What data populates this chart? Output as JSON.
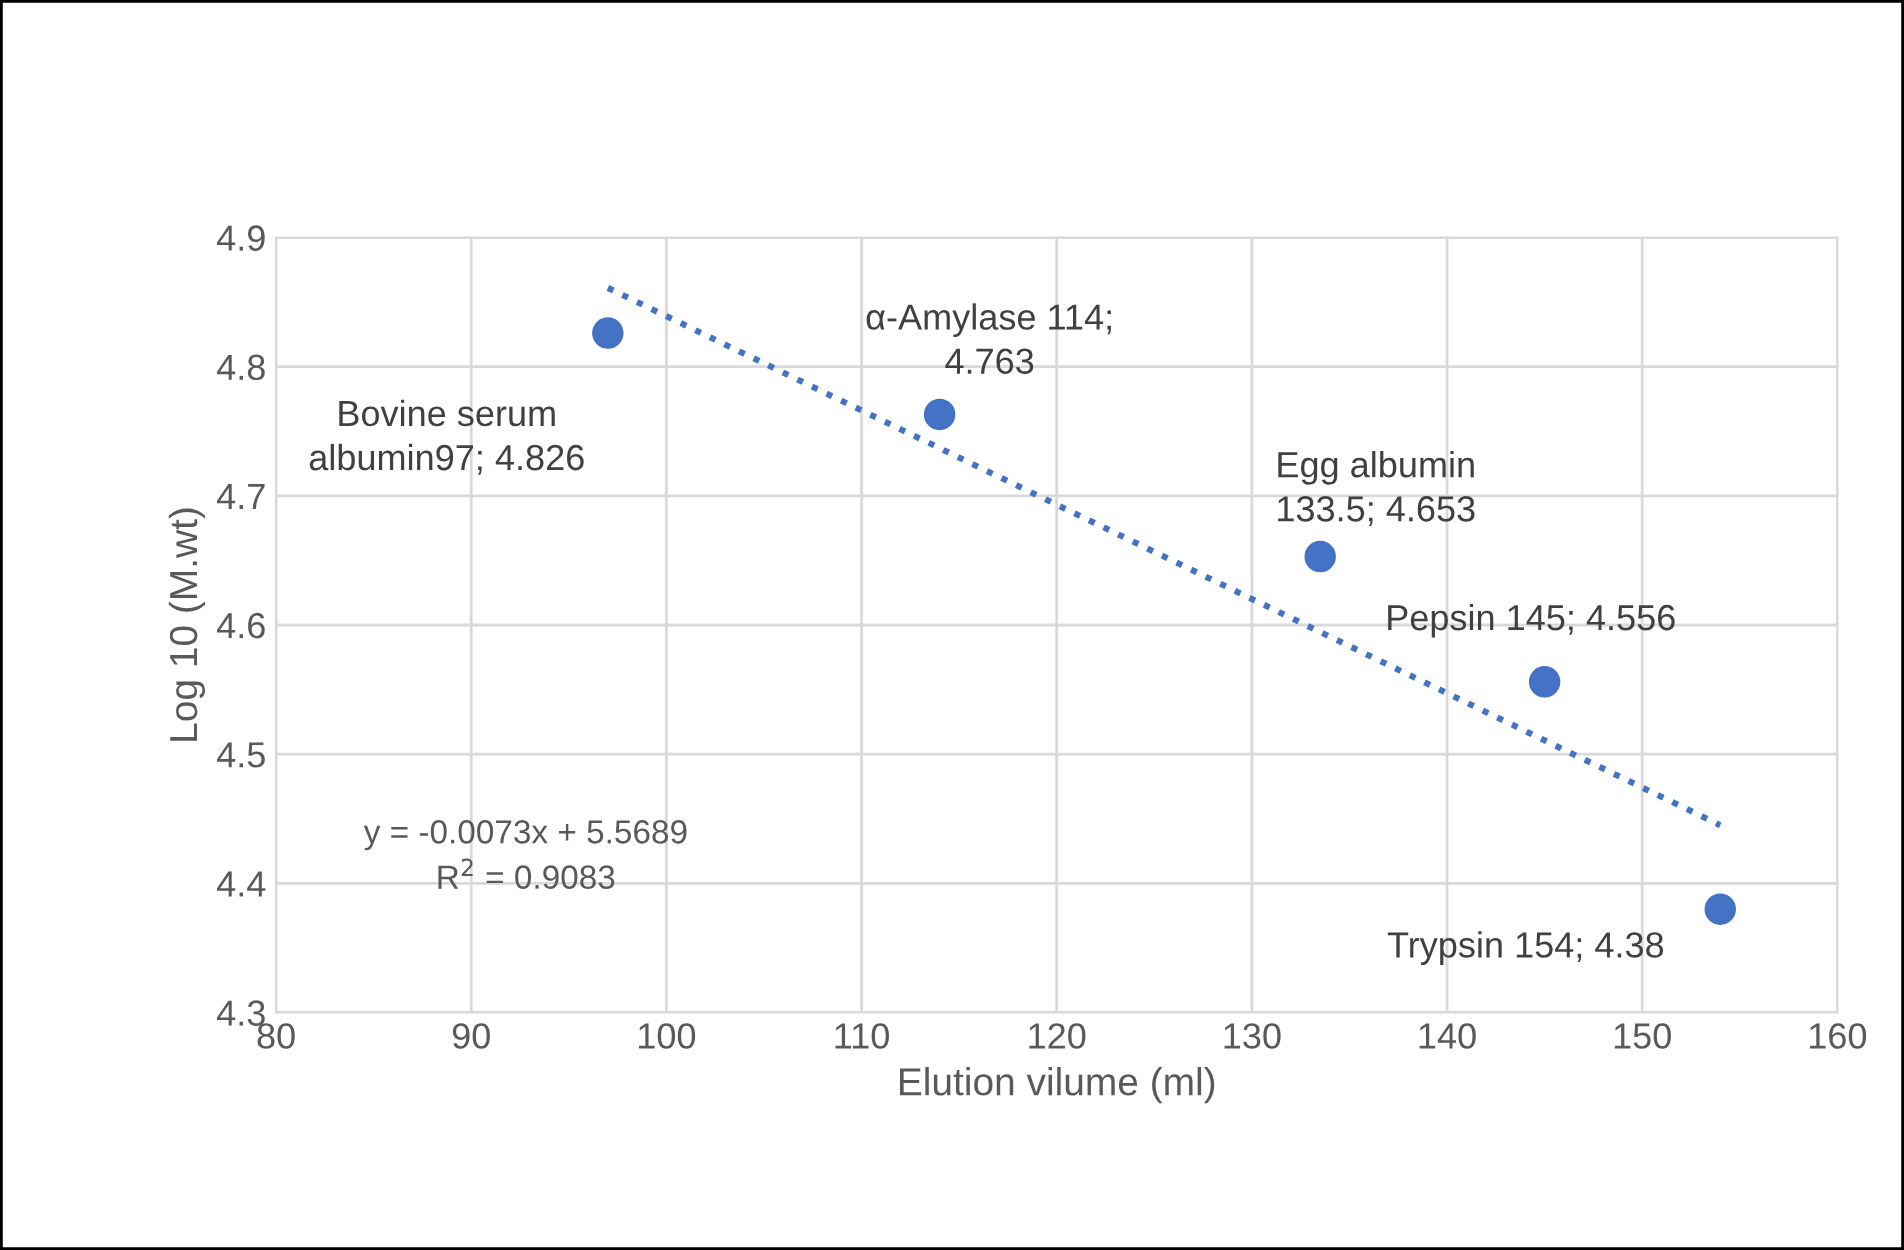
{
  "chart_data": {
    "type": "scatter",
    "xlabel": "Elution vilume (ml)",
    "ylabel": "Log 10 (M.wt)",
    "xlim": [
      80,
      160
    ],
    "xticks": [
      80,
      90,
      100,
      110,
      120,
      130,
      140,
      150,
      160
    ],
    "ylim": [
      4.3,
      4.9
    ],
    "yticks": [
      4.3,
      4.4,
      4.5,
      4.6,
      4.7,
      4.8,
      4.9
    ],
    "grid": true,
    "legend": false,
    "series": [
      {
        "color": "#4472c4",
        "marker": "circle",
        "x": [
          97,
          114,
          133.5,
          145,
          154
        ],
        "values": [
          4.826,
          4.763,
          4.653,
          4.556,
          4.38
        ],
        "value_labels": [
          "Bovine serum\nalbumin97; 4.826",
          "α-Amylase 114;\n4.763",
          "Egg albumin\n133.5; 4.653",
          "Pepsin 145; 4.556",
          "Trypsin 154; 4.38"
        ]
      },
      {
        "type": "line",
        "color": "#4472c4",
        "line_style": "dotted",
        "marker": "none",
        "x": [
          97,
          154
        ],
        "values": [
          4.861,
          4.445
        ]
      }
    ],
    "annotations": [
      "y = -0.0073x + 5.5689\nR$^{2}$ = 0.9083"
    ]
  }
}
